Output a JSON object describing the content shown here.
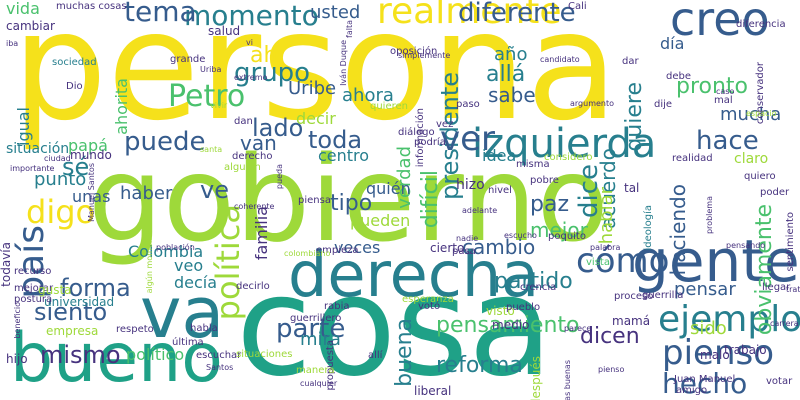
{
  "palette": {
    "background": "#ffffff",
    "yellow": "#f5e11b",
    "lime": "#9ed93a",
    "green": "#4ac16d",
    "teal": "#1fa187",
    "blue": "#277f8e",
    "indigo": "#365c8d",
    "purple": "#46327e",
    "dark": "#440154"
  },
  "words": [
    {
      "text": "persona",
      "color": "#f5e11b"
    },
    {
      "text": "gobierno",
      "color": "#9ed93a"
    },
    {
      "text": "cosa",
      "color": "#1fa187"
    },
    {
      "text": "derecha",
      "color": "#277f8e"
    },
    {
      "text": "bueno",
      "color": "#1fa187"
    },
    {
      "text": "gente",
      "color": "#365c8d"
    },
    {
      "text": "va",
      "color": "#277f8e"
    },
    {
      "text": "izquierda",
      "color": "#277f8e"
    },
    {
      "text": "creo",
      "color": "#365c8d"
    },
    {
      "text": "realmente",
      "color": "#f5e11b"
    },
    {
      "text": "momento",
      "color": "#277f8e"
    },
    {
      "text": "tema",
      "color": "#365c8d"
    },
    {
      "text": "Petro",
      "color": "#4ac16d"
    },
    {
      "text": "ejemplo",
      "color": "#277f8e"
    },
    {
      "text": "pienso",
      "color": "#365c8d"
    },
    {
      "text": "cómo",
      "color": "#365c8d"
    },
    {
      "text": "digo",
      "color": "#f5e11b"
    },
    {
      "text": "puede",
      "color": "#365c8d"
    },
    {
      "text": "hace",
      "color": "#365c8d"
    },
    {
      "text": "hecho",
      "color": "#365c8d"
    },
    {
      "text": "mismo",
      "color": "#46327e"
    },
    {
      "text": "parte",
      "color": "#365c8d"
    },
    {
      "text": "forma",
      "color": "#365c8d"
    },
    {
      "text": "siento",
      "color": "#365c8d"
    },
    {
      "text": "país",
      "color": "#365c8d"
    },
    {
      "text": "política",
      "color": "#9ed93a"
    },
    {
      "text": "presidente",
      "color": "#277f8e"
    },
    {
      "text": "diferente",
      "color": "#365c8d"
    },
    {
      "text": "ver",
      "color": "#365c8d"
    },
    {
      "text": "grupo",
      "color": "#277f8e"
    },
    {
      "text": "lado",
      "color": "#365c8d"
    },
    {
      "text": "toda",
      "color": "#365c8d"
    },
    {
      "text": "sé",
      "color": "#277f8e"
    },
    {
      "text": "ve",
      "color": "#365c8d"
    },
    {
      "text": "reforma",
      "color": "#277f8e"
    },
    {
      "text": "pensamiento",
      "color": "#4ac16d"
    },
    {
      "text": "dicen",
      "color": "#46327e"
    },
    {
      "text": "cambio",
      "color": "#365c8d"
    },
    {
      "text": "obviamente",
      "color": "#4ac16d"
    },
    {
      "text": "mucha",
      "color": "#365c8d"
    },
    {
      "text": "pronto",
      "color": "#4ac16d"
    },
    {
      "text": "dice",
      "color": "#277f8e"
    },
    {
      "text": "acuerdo",
      "color": "#277f8e"
    },
    {
      "text": "quiere",
      "color": "#277f8e"
    },
    {
      "text": "partido",
      "color": "#277f8e"
    },
    {
      "text": "pensar",
      "color": "#365c8d"
    },
    {
      "text": "haciendo",
      "color": "#365c8d"
    },
    {
      "text": "hablar",
      "color": "#9ed93a"
    },
    {
      "text": "mejor",
      "color": "#4ac16d"
    },
    {
      "text": "paz",
      "color": "#365c8d"
    },
    {
      "text": "sabe",
      "color": "#365c8d"
    },
    {
      "text": "allá",
      "color": "#277f8e"
    },
    {
      "text": "año",
      "color": "#277f8e"
    },
    {
      "text": "ahora",
      "color": "#277f8e"
    },
    {
      "text": "decir",
      "color": "#9ed93a"
    },
    {
      "text": "Uribe",
      "color": "#365c8d"
    },
    {
      "text": "usted",
      "color": "#365c8d"
    },
    {
      "text": "centro",
      "color": "#277f8e"
    },
    {
      "text": "van",
      "color": "#365c8d"
    },
    {
      "text": "tipo",
      "color": "#365c8d"
    },
    {
      "text": "veces",
      "color": "#365c8d"
    },
    {
      "text": "Colombia",
      "color": "#277f8e"
    },
    {
      "text": "unas",
      "color": "#365c8d"
    },
    {
      "text": "punto",
      "color": "#277f8e"
    },
    {
      "text": "haber",
      "color": "#365c8d"
    },
    {
      "text": "veo",
      "color": "#277f8e"
    },
    {
      "text": "decía",
      "color": "#277f8e"
    },
    {
      "text": "mira",
      "color": "#277f8e"
    },
    {
      "text": "buena",
      "color": "#277f8e"
    },
    {
      "text": "político",
      "color": "#4ac16d"
    },
    {
      "text": "sido",
      "color": "#9ed93a"
    },
    {
      "text": "difícil",
      "color": "#4ac16d"
    },
    {
      "text": "verdad",
      "color": "#4ac16d"
    },
    {
      "text": "idea",
      "color": "#277f8e"
    },
    {
      "text": "quién",
      "color": "#365c8d"
    },
    {
      "text": "pueden",
      "color": "#9ed93a"
    },
    {
      "text": "familia",
      "color": "#46327e"
    },
    {
      "text": "situación",
      "color": "#277f8e"
    },
    {
      "text": "igual",
      "color": "#277f8e"
    },
    {
      "text": "papá",
      "color": "#4ac16d"
    },
    {
      "text": "mundo",
      "color": "#46327e"
    },
    {
      "text": "ahorita",
      "color": "#4ac16d"
    },
    {
      "text": "vida",
      "color": "#4ac16d"
    },
    {
      "text": "cambiar",
      "color": "#46327e"
    },
    {
      "text": "sociedad",
      "color": "#277f8e"
    },
    {
      "text": "ah",
      "color": "#f5e11b"
    },
    {
      "text": "día",
      "color": "#365c8d"
    },
    {
      "text": "debe",
      "color": "#46327e"
    },
    {
      "text": "dar",
      "color": "#46327e"
    },
    {
      "text": "claro",
      "color": "#9ed93a"
    },
    {
      "text": "realidad",
      "color": "#46327e"
    },
    {
      "text": "diferencia",
      "color": "#46327e"
    },
    {
      "text": "conservador",
      "color": "#46327e"
    },
    {
      "text": "ideología",
      "color": "#277f8e"
    },
    {
      "text": "nivel",
      "color": "#46327e"
    },
    {
      "text": "hizo",
      "color": "#46327e"
    },
    {
      "text": "cierto",
      "color": "#46327e"
    },
    {
      "text": "vista",
      "color": "#4ac16d"
    },
    {
      "text": "malo",
      "color": "#46327e"
    },
    {
      "text": "medio",
      "color": "#46327e"
    },
    {
      "text": "visto",
      "color": "#9ed93a"
    },
    {
      "text": "mamá",
      "color": "#46327e"
    },
    {
      "text": "tal",
      "color": "#46327e"
    },
    {
      "text": "trabajo",
      "color": "#46327e"
    },
    {
      "text": "votar",
      "color": "#46327e"
    },
    {
      "text": "hijo",
      "color": "#46327e"
    },
    {
      "text": "liberal",
      "color": "#46327e"
    },
    {
      "text": "habla",
      "color": "#46327e"
    },
    {
      "text": "salud",
      "color": "#46327e"
    },
    {
      "text": "grande",
      "color": "#46327e"
    },
    {
      "text": "empresa",
      "color": "#9ed93a"
    },
    {
      "text": "universidad",
      "color": "#277f8e"
    },
    {
      "text": "respeto",
      "color": "#46327e"
    },
    {
      "text": "recurso",
      "color": "#46327e"
    },
    {
      "text": "mejorar",
      "color": "#46327e"
    },
    {
      "text": "postura",
      "color": "#46327e"
    },
    {
      "text": "gusta",
      "color": "#9ed93a"
    },
    {
      "text": "todavía",
      "color": "#46327e"
    },
    {
      "text": "muchas cosas",
      "color": "#46327e"
    },
    {
      "text": "Cali",
      "color": "#46327e"
    },
    {
      "text": "escuchar",
      "color": "#46327e"
    },
    {
      "text": "derecho",
      "color": "#46327e"
    },
    {
      "text": "alguien",
      "color": "#9ed93a"
    },
    {
      "text": "considero",
      "color": "#9ed93a"
    },
    {
      "text": "diálogo",
      "color": "#46327e"
    },
    {
      "text": "misma",
      "color": "#46327e"
    },
    {
      "text": "podría",
      "color": "#46327e"
    },
    {
      "text": "información",
      "color": "#46327e"
    },
    {
      "text": "oposición",
      "color": "#46327e"
    },
    {
      "text": "dije",
      "color": "#46327e"
    },
    {
      "text": "mal",
      "color": "#46327e"
    },
    {
      "text": "quieren",
      "color": "#9ed93a"
    },
    {
      "text": "paso",
      "color": "#46327e"
    },
    {
      "text": "vez",
      "color": "#46327e"
    },
    {
      "text": "pasa",
      "color": "#46327e"
    },
    {
      "text": "crencia",
      "color": "#46327e"
    },
    {
      "text": "empieza",
      "color": "#46327e"
    },
    {
      "text": "decirlo",
      "color": "#46327e"
    },
    {
      "text": "rabia",
      "color": "#46327e"
    },
    {
      "text": "esperanza",
      "color": "#9ed93a"
    },
    {
      "text": "votó",
      "color": "#46327e"
    },
    {
      "text": "pueblo",
      "color": "#46327e"
    },
    {
      "text": "guerrillero",
      "color": "#46327e"
    },
    {
      "text": "propuesta",
      "color": "#46327e"
    },
    {
      "text": "allí",
      "color": "#46327e"
    },
    {
      "text": "Juan Manuel",
      "color": "#46327e"
    },
    {
      "text": "proceso",
      "color": "#46327e"
    },
    {
      "text": "guerrilla",
      "color": "#46327e"
    },
    {
      "text": "llegar",
      "color": "#46327e"
    },
    {
      "text": "sentimiento",
      "color": "#46327e"
    },
    {
      "text": "poder",
      "color": "#46327e"
    },
    {
      "text": "quiero",
      "color": "#46327e"
    },
    {
      "text": "pensando",
      "color": "#46327e"
    },
    {
      "text": "poquito",
      "color": "#46327e"
    },
    {
      "text": "palabra",
      "color": "#46327e"
    },
    {
      "text": "pobre",
      "color": "#46327e"
    },
    {
      "text": "escucho",
      "color": "#46327e"
    },
    {
      "text": "nadie",
      "color": "#46327e"
    },
    {
      "text": "adelante",
      "color": "#46327e"
    },
    {
      "text": "piensa",
      "color": "#46327e"
    },
    {
      "text": "coherente",
      "color": "#46327e"
    },
    {
      "text": "población",
      "color": "#46327e"
    },
    {
      "text": "colombiano",
      "color": "#9ed93a"
    },
    {
      "text": "última",
      "color": "#46327e"
    },
    {
      "text": "situaciones",
      "color": "#9ed93a"
    },
    {
      "text": "manera",
      "color": "#9ed93a"
    },
    {
      "text": "cualquier",
      "color": "#46327e"
    },
    {
      "text": "Santos",
      "color": "#46327e"
    },
    {
      "text": "amigo",
      "color": "#46327e"
    },
    {
      "text": "después",
      "color": "#9ed93a"
    },
    {
      "text": "Iván Duque",
      "color": "#46327e"
    },
    {
      "text": "simplemente",
      "color": "#46327e"
    },
    {
      "text": "candidato",
      "color": "#46327e"
    },
    {
      "text": "extremo",
      "color": "#46327e"
    },
    {
      "text": "ciudad",
      "color": "#46327e"
    },
    {
      "text": "importante",
      "color": "#46327e"
    },
    {
      "text": "Manuel Santos",
      "color": "#46327e"
    },
    {
      "text": "argumento",
      "color": "#46327e"
    },
    {
      "text": "caso",
      "color": "#46327e"
    },
    {
      "text": "Dio",
      "color": "#46327e"
    },
    {
      "text": "iba",
      "color": "#46327e"
    },
    {
      "text": "falta",
      "color": "#46327e"
    },
    {
      "text": "dan",
      "color": "#46327e"
    },
    {
      "text": "vivir",
      "color": "#9ed93a"
    },
    {
      "text": "parece",
      "color": "#46327e"
    },
    {
      "text": "carrera",
      "color": "#46327e"
    },
    {
      "text": "problema",
      "color": "#46327e"
    },
    {
      "text": "pienso",
      "color": "#46327e"
    },
    {
      "text": "cosas buenas",
      "color": "#46327e"
    },
    {
      "text": "pueda",
      "color": "#46327e"
    },
    {
      "text": "algún momento",
      "color": "#9ed93a"
    },
    {
      "text": "beneficio",
      "color": "#46327e"
    },
    {
      "text": "Uriba",
      "color": "#46327e"
    },
    {
      "text": "espacio",
      "color": "#9ed93a"
    },
    {
      "text": "vi",
      "color": "#46327e"
    },
    {
      "text": "trata",
      "color": "#46327e"
    },
    {
      "text": "santa",
      "color": "#9ed93a"
    }
  ]
}
